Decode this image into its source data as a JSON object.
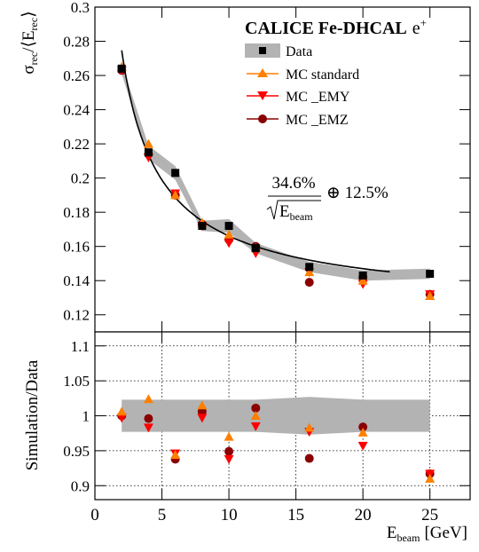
{
  "chart_data": [
    {
      "type": "scatter",
      "panel": "top",
      "title": "CALICE Fe-DHCAL",
      "title_particle": "e",
      "title_particle_sup": "+",
      "ylabel_main": "σ",
      "ylabel_sub1": "rec",
      "ylabel_mid": "/⟨E",
      "ylabel_sub2": "rec",
      "ylabel_end": "⟩",
      "xlim": [
        0,
        28
      ],
      "ylim": [
        0.11,
        0.3
      ],
      "yticks": [
        "0.12",
        "0.14",
        "0.16",
        "0.18",
        "0.2",
        "0.22",
        "0.24",
        "0.26",
        "0.28",
        "0.3"
      ],
      "legend_position": "top-right",
      "annotation": {
        "numerator": "34.6%",
        "denominator_main": "E",
        "denominator_sub": "beam",
        "suffix": "⊕ 12.5%"
      },
      "data_band": {
        "x": [
          2,
          4,
          6,
          8,
          10,
          12,
          16,
          20,
          25
        ],
        "y": [
          0.264,
          0.215,
          0.203,
          0.172,
          0.172,
          0.159,
          0.148,
          0.143,
          0.144
        ],
        "halfwidth": [
          0.003,
          0.004,
          0.004,
          0.003,
          0.004,
          0.003,
          0.003,
          0.003,
          0.003
        ]
      },
      "fit_curve": {
        "stochastic": 0.346,
        "constant": 0.125,
        "x_range": [
          2,
          22
        ]
      },
      "series": [
        {
          "name": "Data",
          "marker": "square",
          "color": "#000000",
          "x": [
            2,
            4,
            6,
            8,
            10,
            12,
            16,
            20,
            25
          ],
          "y": [
            0.264,
            0.215,
            0.203,
            0.172,
            0.172,
            0.159,
            0.148,
            0.143,
            0.144
          ]
        },
        {
          "name": "MC standard",
          "marker": "triangle-up",
          "color": "#ff7f00",
          "x": [
            2,
            4,
            6,
            8,
            10,
            12,
            16,
            20,
            25
          ],
          "y": [
            0.265,
            0.22,
            0.19,
            0.174,
            0.167,
            0.159,
            0.145,
            0.14,
            0.131
          ]
        },
        {
          "name": "MC _EMY",
          "marker": "triangle-down",
          "color": "#ff0000",
          "x": [
            2,
            4,
            6,
            8,
            10,
            12,
            16,
            20,
            25
          ],
          "y": [
            0.263,
            0.212,
            0.191,
            0.172,
            0.162,
            0.156,
            0.145,
            0.138,
            0.132
          ]
        },
        {
          "name": "MC _EMZ",
          "marker": "circle",
          "color": "#8b0000",
          "x": [
            2,
            4,
            6,
            8,
            10,
            12,
            16,
            20,
            25
          ],
          "y": [
            0.263,
            0.214,
            0.19,
            0.173,
            0.164,
            0.16,
            0.139,
            0.142,
            0.132
          ]
        }
      ]
    },
    {
      "type": "scatter",
      "panel": "ratio",
      "ylabel": "Simulation/Data",
      "xlabel_main": "E",
      "xlabel_sub": "beam",
      "xlabel_unit": "[GeV]",
      "xlim": [
        0,
        28
      ],
      "ylim": [
        0.88,
        1.12
      ],
      "xticks": [
        "0",
        "5",
        "10",
        "15",
        "20",
        "25"
      ],
      "yticks": [
        "0.9",
        "0.95",
        "1",
        "1.05",
        "1.1"
      ],
      "grid": true,
      "band": {
        "x": [
          2,
          4,
          6,
          8,
          10,
          12,
          16,
          20,
          25
        ],
        "low": [
          0.977,
          0.977,
          0.977,
          0.977,
          0.977,
          0.977,
          0.973,
          0.977,
          0.977
        ],
        "high": [
          1.023,
          1.023,
          1.023,
          1.023,
          1.023,
          1.023,
          1.027,
          1.023,
          1.023
        ]
      },
      "series": [
        {
          "name": "MC standard",
          "marker": "triangle-up",
          "color": "#ff7f00",
          "x": [
            2,
            4,
            6,
            8,
            10,
            12,
            16,
            20,
            25
          ],
          "y": [
            1.006,
            1.024,
            0.944,
            1.015,
            0.97,
            1.0,
            0.983,
            0.976,
            0.91
          ]
        },
        {
          "name": "MC _EMY",
          "marker": "triangle-down",
          "color": "#ff0000",
          "x": [
            2,
            4,
            6,
            8,
            10,
            12,
            16,
            20,
            25
          ],
          "y": [
            0.997,
            0.983,
            0.946,
            0.997,
            0.938,
            0.985,
            0.977,
            0.957,
            0.917
          ]
        },
        {
          "name": "MC _EMZ",
          "marker": "circle",
          "color": "#8b0000",
          "x": [
            2,
            4,
            6,
            8,
            10,
            12,
            16,
            20,
            25
          ],
          "y": [
            1.0,
            0.996,
            0.938,
            1.006,
            0.949,
            1.011,
            0.939,
            0.984,
            0.917
          ]
        }
      ]
    }
  ]
}
